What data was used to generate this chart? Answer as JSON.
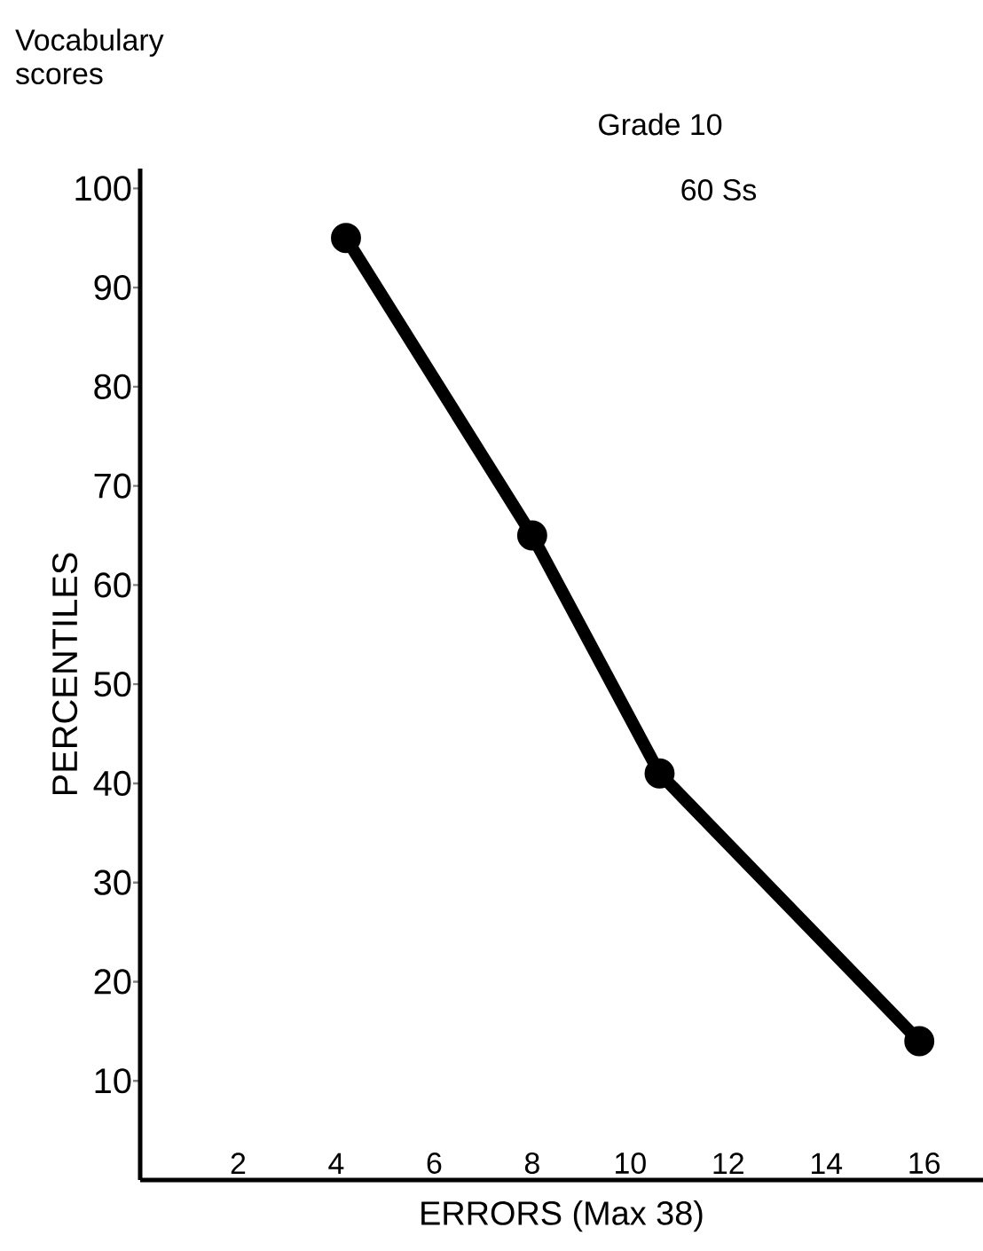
{
  "chart_data": {
    "type": "line",
    "title": "Vocabulary scores",
    "xlabel": "ERRORS (Max 38)",
    "ylabel": "PERCENTILES",
    "annotations": [
      "Grade 10",
      "60 Ss"
    ],
    "x": [
      4.2,
      8.0,
      10.6,
      15.9
    ],
    "values": [
      95,
      65,
      41,
      14
    ],
    "color": "#000000",
    "marker": "circle",
    "line_style": "solid",
    "xlim": [
      0,
      17.2
    ],
    "ylim": [
      0,
      102
    ],
    "xticks": [
      2,
      4,
      6,
      8,
      10,
      12,
      14,
      16
    ],
    "yticks": [
      10,
      20,
      30,
      40,
      50,
      60,
      70,
      80,
      90,
      100
    ],
    "grid": false
  }
}
